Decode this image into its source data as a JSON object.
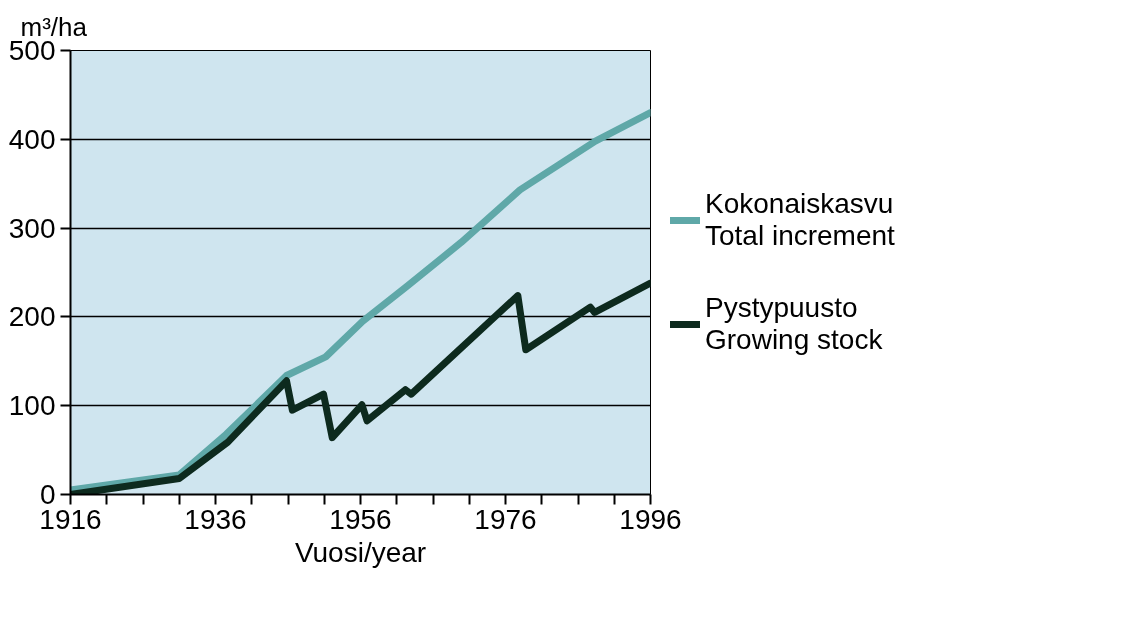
{
  "chart_data": {
    "type": "line",
    "ylabel": "m³/ha",
    "xlabel": "Vuosi/year",
    "xlim": [
      1916,
      1996
    ],
    "ylim": [
      0,
      500
    ],
    "xticks": [
      1916,
      {
        "value": 1921,
        "label": null
      },
      {
        "value": 1926,
        "label": null
      },
      {
        "value": 1931,
        "label": null
      },
      1936,
      {
        "value": 1941,
        "label": null
      },
      {
        "value": 1946,
        "label": null
      },
      {
        "value": 1951,
        "label": null
      },
      1956,
      {
        "value": 1961,
        "label": null
      },
      {
        "value": 1966,
        "label": null
      },
      {
        "value": 1971,
        "label": null
      },
      1976,
      {
        "value": 1981,
        "label": null
      },
      {
        "value": 1986,
        "label": null
      },
      {
        "value": 1991,
        "label": null
      },
      1996
    ],
    "yticks": [
      0,
      100,
      200,
      300,
      400,
      500
    ],
    "grid": "y",
    "legend": "right",
    "marker": "none",
    "line_style": "solid",
    "series": [
      {
        "name": "Kokonaiskasvu\nTotal increment",
        "color": "#5fa8a8",
        "x": [
          1916,
          1931,
          1937.5,
          1945.8,
          1951.2,
          1956.3,
          1962.5,
          1969.9,
          1978,
          1988.4,
          1996
        ],
        "values": [
          5,
          22,
          68,
          134,
          155,
          195,
          235,
          284,
          343,
          398,
          430
        ]
      },
      {
        "name": "Pystypuusto\nGrowing stock",
        "color": "#0d2a1e",
        "x": [
          1916,
          1931,
          1937.7,
          1945.8,
          1946.6,
          1950.9,
          1952.1,
          1956.2,
          1956.9,
          1962.2,
          1963,
          1977.7,
          1978.8,
          1987.7,
          1988.3,
          1996
        ],
        "values": [
          0,
          18,
          59,
          128,
          95,
          113,
          64,
          101,
          83,
          118,
          113,
          224,
          163,
          211,
          205,
          238
        ]
      }
    ]
  }
}
